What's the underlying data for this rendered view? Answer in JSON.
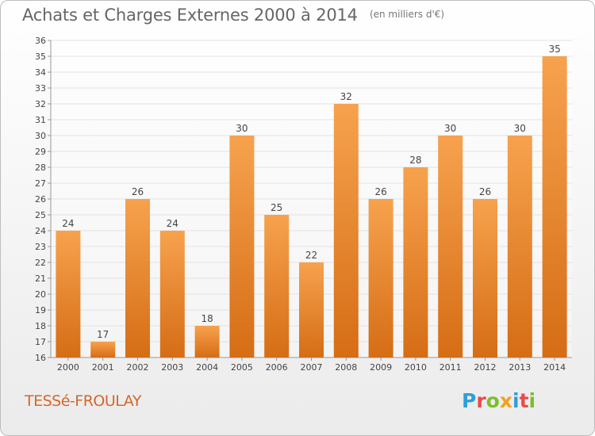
{
  "header": {
    "title": "Achats et Charges Externes 2000 à 2014",
    "subtitle": "(en milliers d'€)"
  },
  "footer": {
    "commune": "TESSé-FROULAY",
    "logo_text": "Proxiti"
  },
  "colors": {
    "bar_top": "#f7a24e",
    "bar_bottom": "#d56d15",
    "commune_text": "#d4672b",
    "logo_letters": [
      "#2f9ed8",
      "#e84b4b",
      "#7bbf2a",
      "#f2a21b",
      "#2f9ed8",
      "#e84b4b",
      "#7bbf2a"
    ]
  },
  "chart_data": {
    "type": "bar",
    "title": "Achats et Charges Externes 2000 à 2014",
    "subtitle": "(en milliers d'€)",
    "xlabel": "",
    "ylabel": "",
    "categories": [
      "2000",
      "2001",
      "2002",
      "2003",
      "2004",
      "2005",
      "2006",
      "2007",
      "2008",
      "2009",
      "2010",
      "2011",
      "2012",
      "2013",
      "2014"
    ],
    "values": [
      24,
      17,
      26,
      24,
      18,
      30,
      25,
      22,
      32,
      26,
      28,
      30,
      26,
      30,
      35
    ],
    "ylim": [
      16,
      36
    ],
    "yticks": [
      16,
      17,
      18,
      19,
      20,
      21,
      22,
      23,
      24,
      25,
      26,
      27,
      28,
      29,
      30,
      31,
      32,
      33,
      34,
      35,
      36
    ],
    "grid": true,
    "data_labels": true
  }
}
